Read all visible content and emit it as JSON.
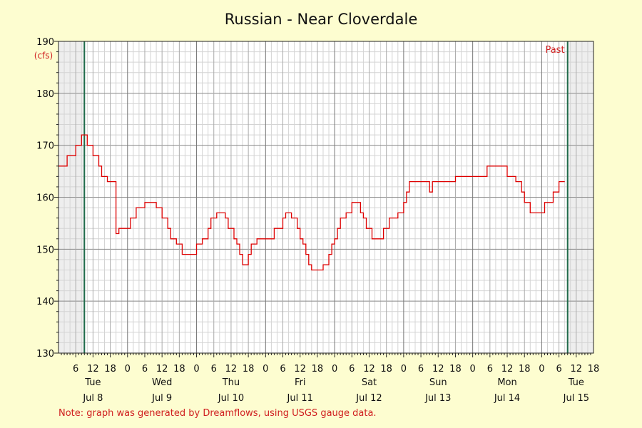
{
  "chart_data": {
    "type": "line",
    "title": "Russian - Near Cloverdale",
    "ylabel": "(cfs)",
    "ylim": [
      130,
      190
    ],
    "yticks": [
      130,
      140,
      150,
      160,
      170,
      180,
      190
    ],
    "xlim": [
      0,
      186
    ],
    "x_hour_ticks": [
      {
        "x": 6,
        "label": "6"
      },
      {
        "x": 12,
        "label": "12"
      },
      {
        "x": 18,
        "label": "18"
      },
      {
        "x": 24,
        "label": "0"
      },
      {
        "x": 30,
        "label": "6"
      },
      {
        "x": 36,
        "label": "12"
      },
      {
        "x": 42,
        "label": "18"
      },
      {
        "x": 48,
        "label": "0"
      },
      {
        "x": 54,
        "label": "6"
      },
      {
        "x": 60,
        "label": "12"
      },
      {
        "x": 66,
        "label": "18"
      },
      {
        "x": 72,
        "label": "0"
      },
      {
        "x": 78,
        "label": "6"
      },
      {
        "x": 84,
        "label": "12"
      },
      {
        "x": 90,
        "label": "18"
      },
      {
        "x": 96,
        "label": "0"
      },
      {
        "x": 102,
        "label": "6"
      },
      {
        "x": 108,
        "label": "12"
      },
      {
        "x": 114,
        "label": "18"
      },
      {
        "x": 120,
        "label": "0"
      },
      {
        "x": 126,
        "label": "6"
      },
      {
        "x": 132,
        "label": "12"
      },
      {
        "x": 138,
        "label": "18"
      },
      {
        "x": 144,
        "label": "0"
      },
      {
        "x": 150,
        "label": "6"
      },
      {
        "x": 156,
        "label": "12"
      },
      {
        "x": 162,
        "label": "18"
      },
      {
        "x": 168,
        "label": "0"
      },
      {
        "x": 174,
        "label": "6"
      },
      {
        "x": 180,
        "label": "12"
      },
      {
        "x": 186,
        "label": "18"
      }
    ],
    "day_labels": [
      {
        "x": 12,
        "day": "Tue",
        "date": "Jul 8"
      },
      {
        "x": 36,
        "day": "Wed",
        "date": "Jul 9"
      },
      {
        "x": 60,
        "day": "Thu",
        "date": "Jul 10"
      },
      {
        "x": 84,
        "day": "Fri",
        "date": "Jul 11"
      },
      {
        "x": 108,
        "day": "Sat",
        "date": "Jul 12"
      },
      {
        "x": 132,
        "day": "Sun",
        "date": "Jul 13"
      },
      {
        "x": 156,
        "day": "Mon",
        "date": "Jul 14"
      },
      {
        "x": 180,
        "day": "Tue",
        "date": "Jul 15"
      }
    ],
    "past_marker_label": "Past",
    "window_start_x": 9,
    "window_end_x": 177,
    "grid": true,
    "series": [
      {
        "color": "#dd0000",
        "points": [
          [
            0,
            166
          ],
          [
            3,
            166
          ],
          [
            3,
            168
          ],
          [
            6,
            168
          ],
          [
            6,
            170
          ],
          [
            8,
            170
          ],
          [
            8,
            172
          ],
          [
            10,
            172
          ],
          [
            10,
            170
          ],
          [
            12,
            170
          ],
          [
            12,
            168
          ],
          [
            14,
            168
          ],
          [
            14,
            166
          ],
          [
            15,
            166
          ],
          [
            15,
            164
          ],
          [
            17,
            164
          ],
          [
            17,
            163
          ],
          [
            20,
            163
          ],
          [
            20,
            153
          ],
          [
            21,
            153
          ],
          [
            21,
            154
          ],
          [
            25,
            154
          ],
          [
            25,
            156
          ],
          [
            27,
            156
          ],
          [
            27,
            158
          ],
          [
            30,
            158
          ],
          [
            30,
            159
          ],
          [
            34,
            159
          ],
          [
            34,
            158
          ],
          [
            36,
            158
          ],
          [
            36,
            156
          ],
          [
            38,
            156
          ],
          [
            38,
            154
          ],
          [
            39,
            154
          ],
          [
            39,
            152
          ],
          [
            41,
            152
          ],
          [
            41,
            151
          ],
          [
            43,
            151
          ],
          [
            43,
            149
          ],
          [
            48,
            149
          ],
          [
            48,
            151
          ],
          [
            50,
            151
          ],
          [
            50,
            152
          ],
          [
            52,
            152
          ],
          [
            52,
            154
          ],
          [
            53,
            154
          ],
          [
            53,
            156
          ],
          [
            55,
            156
          ],
          [
            55,
            157
          ],
          [
            58,
            157
          ],
          [
            58,
            156
          ],
          [
            59,
            156
          ],
          [
            59,
            154
          ],
          [
            61,
            154
          ],
          [
            61,
            152
          ],
          [
            62,
            152
          ],
          [
            62,
            151
          ],
          [
            63,
            151
          ],
          [
            63,
            149
          ],
          [
            64,
            149
          ],
          [
            64,
            147
          ],
          [
            66,
            147
          ],
          [
            66,
            149
          ],
          [
            67,
            149
          ],
          [
            67,
            151
          ],
          [
            69,
            151
          ],
          [
            69,
            152
          ],
          [
            75,
            152
          ],
          [
            75,
            154
          ],
          [
            78,
            154
          ],
          [
            78,
            156
          ],
          [
            79,
            156
          ],
          [
            79,
            157
          ],
          [
            81,
            157
          ],
          [
            81,
            156
          ],
          [
            83,
            156
          ],
          [
            83,
            154
          ],
          [
            84,
            154
          ],
          [
            84,
            152
          ],
          [
            85,
            152
          ],
          [
            85,
            151
          ],
          [
            86,
            151
          ],
          [
            86,
            149
          ],
          [
            87,
            149
          ],
          [
            87,
            147
          ],
          [
            88,
            147
          ],
          [
            88,
            146
          ],
          [
            92,
            146
          ],
          [
            92,
            147
          ],
          [
            94,
            147
          ],
          [
            94,
            149
          ],
          [
            95,
            149
          ],
          [
            95,
            151
          ],
          [
            96,
            151
          ],
          [
            96,
            152
          ],
          [
            97,
            152
          ],
          [
            97,
            154
          ],
          [
            98,
            154
          ],
          [
            98,
            156
          ],
          [
            100,
            156
          ],
          [
            100,
            157
          ],
          [
            102,
            157
          ],
          [
            102,
            159
          ],
          [
            105,
            159
          ],
          [
            105,
            157
          ],
          [
            106,
            157
          ],
          [
            106,
            156
          ],
          [
            107,
            156
          ],
          [
            107,
            154
          ],
          [
            109,
            154
          ],
          [
            109,
            152
          ],
          [
            113,
            152
          ],
          [
            113,
            154
          ],
          [
            115,
            154
          ],
          [
            115,
            156
          ],
          [
            118,
            156
          ],
          [
            118,
            157
          ],
          [
            120,
            157
          ],
          [
            120,
            159
          ],
          [
            121,
            159
          ],
          [
            121,
            161
          ],
          [
            122,
            161
          ],
          [
            122,
            163
          ],
          [
            129,
            163
          ],
          [
            129,
            161
          ],
          [
            130,
            161
          ],
          [
            130,
            163
          ],
          [
            138,
            163
          ],
          [
            138,
            164
          ],
          [
            149,
            164
          ],
          [
            149,
            166
          ],
          [
            156,
            166
          ],
          [
            156,
            164
          ],
          [
            159,
            164
          ],
          [
            159,
            163
          ],
          [
            161,
            163
          ],
          [
            161,
            161
          ],
          [
            162,
            161
          ],
          [
            162,
            159
          ],
          [
            164,
            159
          ],
          [
            164,
            157
          ],
          [
            169,
            157
          ],
          [
            169,
            159
          ],
          [
            172,
            159
          ],
          [
            172,
            161
          ],
          [
            174,
            161
          ],
          [
            174,
            163
          ],
          [
            176,
            163
          ]
        ]
      }
    ]
  },
  "note": "Note: graph was generated by Dreamflows, using USGS gauge data.",
  "colors": {
    "background": "#fdfdd0",
    "plot_bg": "#ffffff",
    "shaded_bg": "#eeeeee",
    "marker_line": "#1f6b4a",
    "series": "#dd0000",
    "accent_text": "#d02020"
  }
}
